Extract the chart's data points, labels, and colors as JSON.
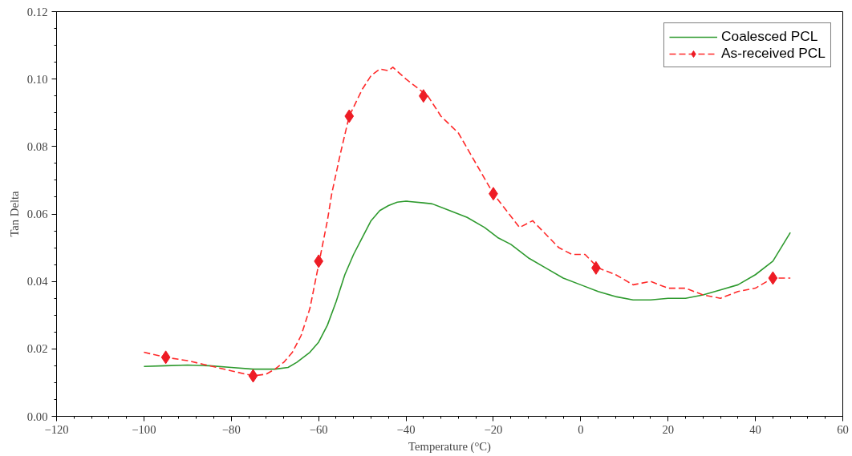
{
  "chart_data": {
    "type": "line",
    "xlabel": "Temperature (°C)",
    "ylabel": "Tan Delta",
    "xlim": [
      -120,
      60
    ],
    "xticks": [
      -120,
      -100,
      -80,
      -60,
      -40,
      -20,
      0,
      20,
      40,
      60
    ],
    "ylim": [
      0,
      0.12
    ],
    "yticks": [
      {
        "value": 0,
        "label": "0.00"
      },
      {
        "value": 0.02,
        "label": "0.02"
      },
      {
        "value": 0.04,
        "label": "0.04"
      },
      {
        "value": 0.06,
        "label": "0.06"
      },
      {
        "value": 0.08,
        "label": "0.08"
      },
      {
        "value": 0.1,
        "label": "0.10"
      },
      {
        "value": 0.12,
        "label": "0.12"
      }
    ],
    "grid": false,
    "legend": "top right",
    "series": [
      {
        "name": "Coalesced PCL",
        "color": "#2e9a2e",
        "line_style": "solid",
        "marker": "none",
        "x": [
          -100,
          -95,
          -90,
          -85,
          -80,
          -75,
          -70,
          -67,
          -65,
          -62,
          -60,
          -58,
          -56,
          -54,
          -52,
          -50,
          -48,
          -46,
          -44,
          -42,
          -40,
          -36,
          -34,
          -30,
          -26,
          -22,
          -19,
          -16,
          -12,
          -8,
          -4,
          0,
          4,
          8,
          12,
          16,
          20,
          24,
          28,
          32,
          36,
          40,
          44,
          48
        ],
        "values": [
          0.0148,
          0.015,
          0.0152,
          0.015,
          0.0145,
          0.014,
          0.014,
          0.0145,
          0.016,
          0.019,
          0.022,
          0.027,
          0.034,
          0.042,
          0.048,
          0.053,
          0.058,
          0.061,
          0.0625,
          0.0635,
          0.0638,
          0.0633,
          0.063,
          0.061,
          0.059,
          0.056,
          0.053,
          0.051,
          0.047,
          0.044,
          0.041,
          0.039,
          0.037,
          0.0355,
          0.0345,
          0.0345,
          0.035,
          0.035,
          0.036,
          0.0375,
          0.039,
          0.042,
          0.046,
          0.0545
        ]
      },
      {
        "name": "As-received PCL",
        "color": "#ff2a2a",
        "line_style": "dashed",
        "marker": "none",
        "x": [
          -100,
          -95,
          -90,
          -85,
          -80,
          -75,
          -72,
          -70,
          -68,
          -66,
          -64,
          -62,
          -60,
          -58,
          -57,
          -55,
          -53,
          -50,
          -48,
          -46,
          -44,
          -43,
          -40,
          -38,
          -35,
          -32,
          -28,
          -24,
          -20,
          -17,
          -14,
          -11,
          -8,
          -5,
          -2,
          1,
          4,
          8,
          12,
          16,
          20,
          24,
          28,
          32,
          36,
          40,
          44,
          48
        ],
        "values": [
          0.019,
          0.0175,
          0.0165,
          0.015,
          0.0135,
          0.012,
          0.0125,
          0.014,
          0.016,
          0.019,
          0.024,
          0.032,
          0.045,
          0.058,
          0.066,
          0.078,
          0.089,
          0.097,
          0.101,
          0.103,
          0.1025,
          0.1035,
          0.1,
          0.098,
          0.095,
          0.089,
          0.084,
          0.075,
          0.066,
          0.061,
          0.056,
          0.058,
          0.054,
          0.05,
          0.048,
          0.048,
          0.044,
          0.042,
          0.039,
          0.04,
          0.038,
          0.038,
          0.036,
          0.035,
          0.037,
          0.038,
          0.041,
          0.041
        ]
      },
      {
        "type": "scatter",
        "color": "#ee1c25",
        "marker": "diamond",
        "x": [
          -95,
          -75,
          -60,
          -53,
          -36,
          -20,
          3.5,
          44
        ],
        "values": [
          0.0175,
          0.012,
          0.046,
          0.089,
          0.095,
          0.066,
          0.044,
          0.041
        ]
      }
    ]
  }
}
